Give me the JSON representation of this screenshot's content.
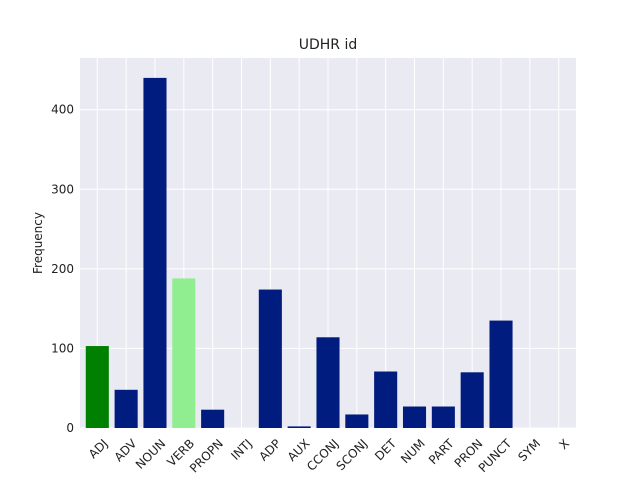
{
  "chart_data": {
    "type": "bar",
    "title": "UDHR id",
    "xlabel": "",
    "ylabel": "Frequency",
    "ylim": [
      0,
      465
    ],
    "yticks": [
      0,
      100,
      200,
      300,
      400
    ],
    "grid": true,
    "categories": [
      "ADJ",
      "ADV",
      "NOUN",
      "VERB",
      "PROPN",
      "INTJ",
      "ADP",
      "AUX",
      "CCONJ",
      "SCONJ",
      "DET",
      "NUM",
      "PART",
      "PRON",
      "PUNCT",
      "SYM",
      "X"
    ],
    "values": [
      103,
      48,
      440,
      188,
      23,
      0,
      174,
      2,
      114,
      17,
      71,
      27,
      27,
      70,
      135,
      0,
      0
    ],
    "colors": [
      "#008000",
      "#001c7f",
      "#001c7f",
      "#90ee90",
      "#001c7f",
      "#001c7f",
      "#001c7f",
      "#001c7f",
      "#001c7f",
      "#001c7f",
      "#001c7f",
      "#001c7f",
      "#001c7f",
      "#001c7f",
      "#001c7f",
      "#001c7f",
      "#001c7f"
    ],
    "background_color": "#eaeaf2",
    "grid_color": "#ffffff"
  }
}
